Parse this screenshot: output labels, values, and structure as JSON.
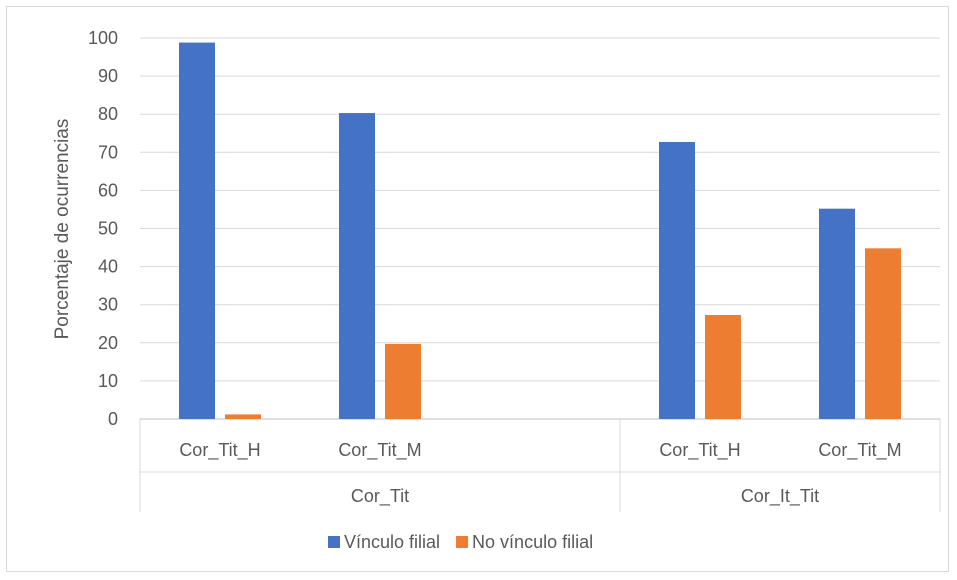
{
  "chart_data": {
    "type": "bar",
    "ylabel": "Porcentaje de ocurrencias",
    "xlabel": "",
    "ylim": [
      0,
      100
    ],
    "ytick_step": 10,
    "grid": true,
    "legend_position": "bottom",
    "groups": [
      {
        "label": "Cor_Tit",
        "categories": [
          "Cor_Tit_H",
          "Cor_Tit_M",
          ""
        ]
      },
      {
        "label": "Cor_It_Tit",
        "categories": [
          "Cor_Tit_H",
          "Cor_Tit_M"
        ]
      }
    ],
    "categories": [
      "Cor_Tit_H",
      "Cor_Tit_M",
      "",
      "Cor_Tit_H",
      "Cor_Tit_M"
    ],
    "series": [
      {
        "name": "Vínculo filial",
        "color": "#4472c4",
        "values": [
          98.8,
          80.3,
          null,
          72.7,
          55.2
        ]
      },
      {
        "name": "No vínculo filial",
        "color": "#ed7d31",
        "values": [
          1.2,
          19.7,
          null,
          27.3,
          44.8
        ]
      }
    ]
  }
}
